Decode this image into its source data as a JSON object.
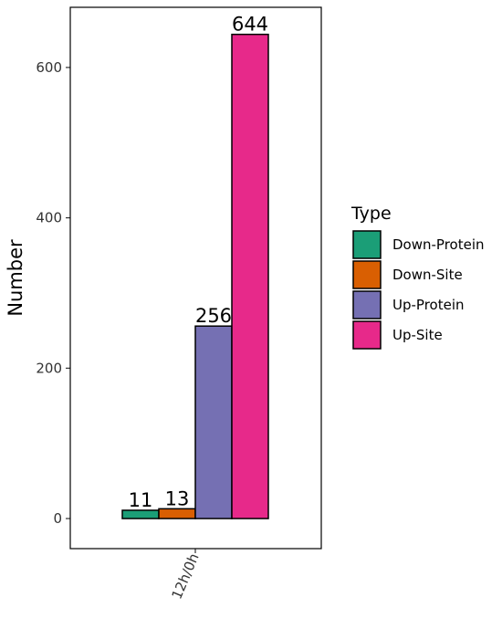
{
  "chart_data": {
    "type": "bar",
    "title": "",
    "xlabel": "",
    "ylabel": "Number",
    "categories": [
      "12h/0h"
    ],
    "ylim": [
      -40,
      680
    ],
    "yticks": [
      0,
      200,
      400,
      600
    ],
    "grid": false,
    "legend_position": "right",
    "legend_title": "Type",
    "series": [
      {
        "name": "Down-Protein",
        "values": [
          11
        ],
        "color": "#1b9e77"
      },
      {
        "name": "Down-Site",
        "values": [
          13
        ],
        "color": "#d95f02"
      },
      {
        "name": "Up-Protein",
        "values": [
          256
        ],
        "color": "#7570b3"
      },
      {
        "name": "Up-Site",
        "values": [
          644
        ],
        "color": "#e7298a"
      }
    ],
    "data_labels": [
      "11",
      "13",
      "256",
      "644"
    ]
  }
}
